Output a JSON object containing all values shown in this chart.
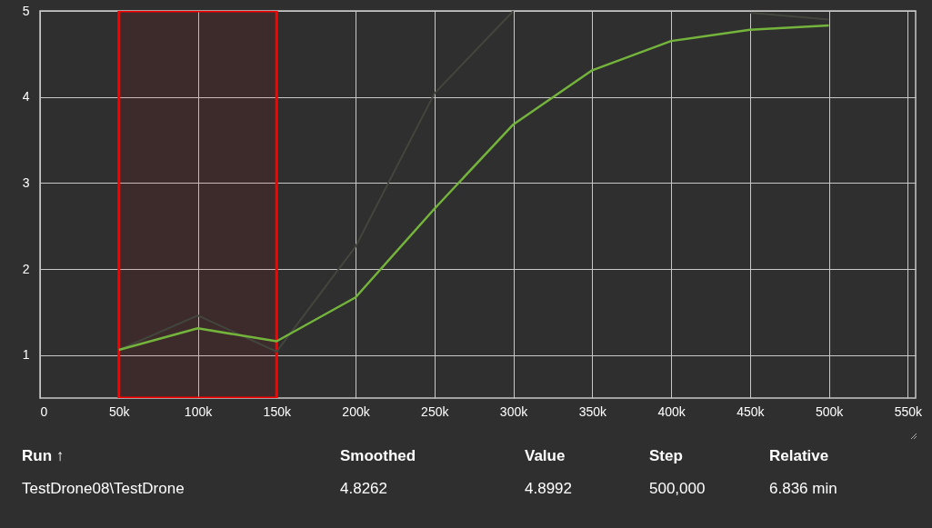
{
  "chart_data": {
    "type": "line",
    "x": [
      50000,
      100000,
      150000,
      200000,
      250000,
      300000,
      350000,
      400000,
      450000,
      500000
    ],
    "series": [
      {
        "color": "#43463d",
        "values": [
          1.06,
          1.46,
          1.04,
          2.26,
          4.04,
          5.0,
          null,
          null,
          4.98,
          4.9
        ]
      },
      {
        "color": "#74b43c",
        "values": [
          1.06,
          1.31,
          1.16,
          1.67,
          2.7,
          3.68,
          4.31,
          4.65,
          4.78,
          4.83
        ]
      }
    ],
    "xlim": [
      0,
      555000
    ],
    "xticks": [
      {
        "value": 0,
        "label": "0"
      },
      {
        "value": 50000,
        "label": "50k"
      },
      {
        "value": 100000,
        "label": "100k"
      },
      {
        "value": 150000,
        "label": "150k"
      },
      {
        "value": 200000,
        "label": "200k"
      },
      {
        "value": 250000,
        "label": "250k"
      },
      {
        "value": 300000,
        "label": "300k"
      },
      {
        "value": 350000,
        "label": "350k"
      },
      {
        "value": 400000,
        "label": "400k"
      },
      {
        "value": 450000,
        "label": "450k"
      },
      {
        "value": 500000,
        "label": "500k"
      },
      {
        "value": 550000,
        "label": "550k"
      }
    ],
    "ylim": [
      0.5,
      5.0
    ],
    "yticks": [
      1,
      2,
      3,
      4,
      5
    ],
    "grid": true,
    "bands": [
      {
        "axis": "x",
        "from": 50000,
        "to": 150000,
        "color": "#ff0000"
      }
    ],
    "marker": "none",
    "line_style": "solid",
    "annotations": [
      "Run ↑",
      "Smoothed",
      "Value",
      "Step",
      "Relative",
      "TestDrone08\\TestDrone",
      "4.8262",
      "4.8992",
      "500,000",
      "6.836 min"
    ]
  }
}
